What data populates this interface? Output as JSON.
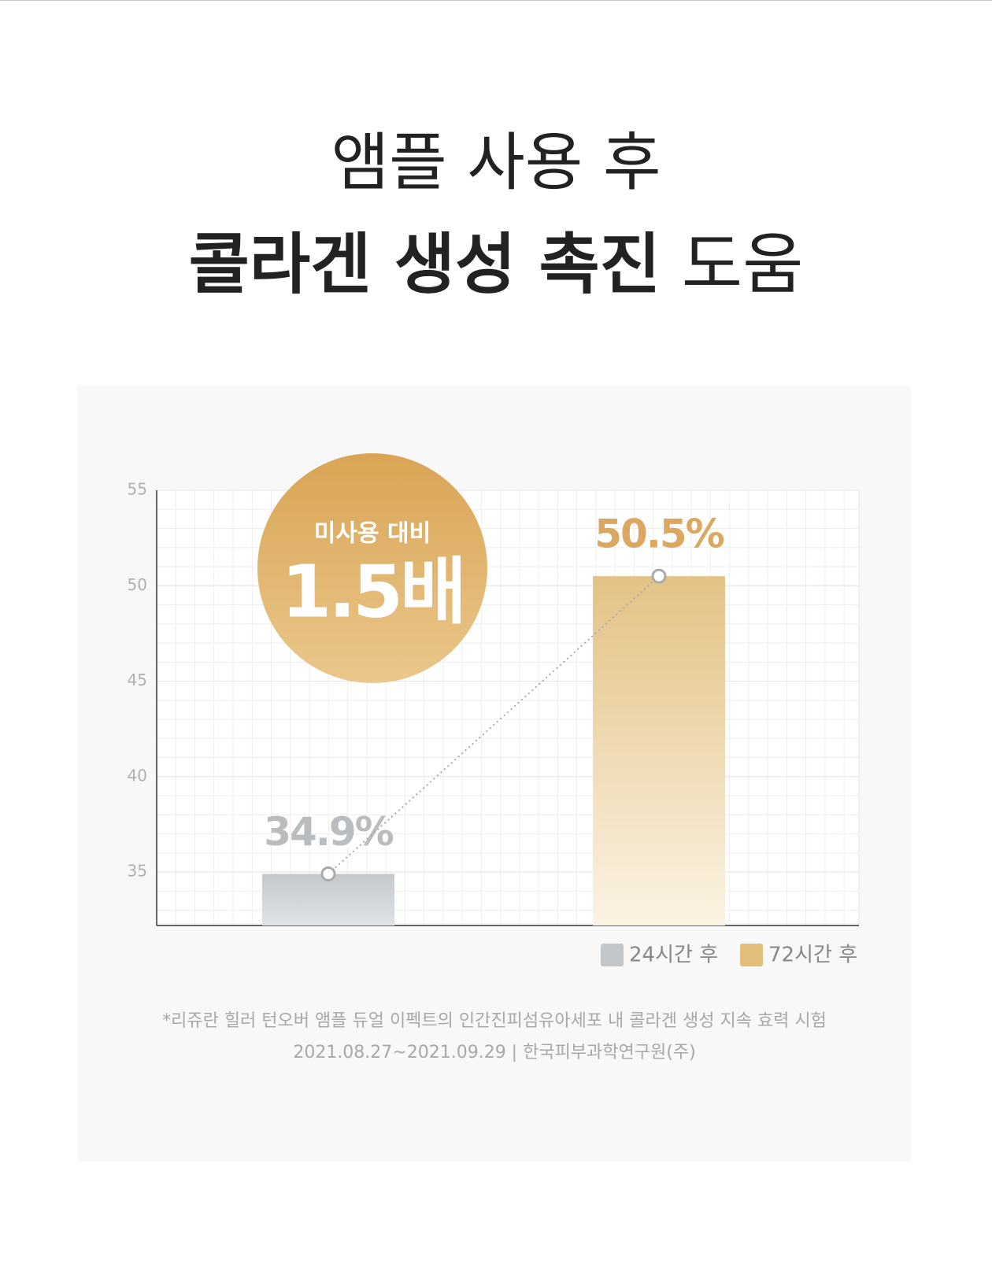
{
  "title_line1": "앰플 사용 후",
  "title_line2_bold": "콜라겐 생성 촉진",
  "title_line2_regular": "도움",
  "chart_data": {
    "type": "bar",
    "badge_label": "미사용 대비",
    "badge_value": "1.5배",
    "categories": [
      null,
      null
    ],
    "series": [
      {
        "name": "24시간 후",
        "color": "#c2c6c9",
        "values": [
          34.9,
          null
        ],
        "value_labels": [
          "34.9%",
          null
        ],
        "label_color": "#b9bdc0"
      },
      {
        "name": "72시간 후",
        "color": "#e3bd7a",
        "values": [
          null,
          50.5
        ],
        "value_labels": [
          null,
          "50.5%"
        ],
        "label_color": "#dba862"
      }
    ],
    "ylim": [
      32.2,
      55
    ],
    "yticks": [
      35,
      40,
      45,
      50,
      55
    ],
    "grid": true
  },
  "footnote_line1": "*리쥬란 힐러 턴오버 앰플 듀얼 이펙트의 인간진피섬유아세포 내 콜라겐 생성 지속 효력 시험",
  "footnote_line2": "2021.08.27~2021.09.29 | 한국피부과학연구원(주)"
}
